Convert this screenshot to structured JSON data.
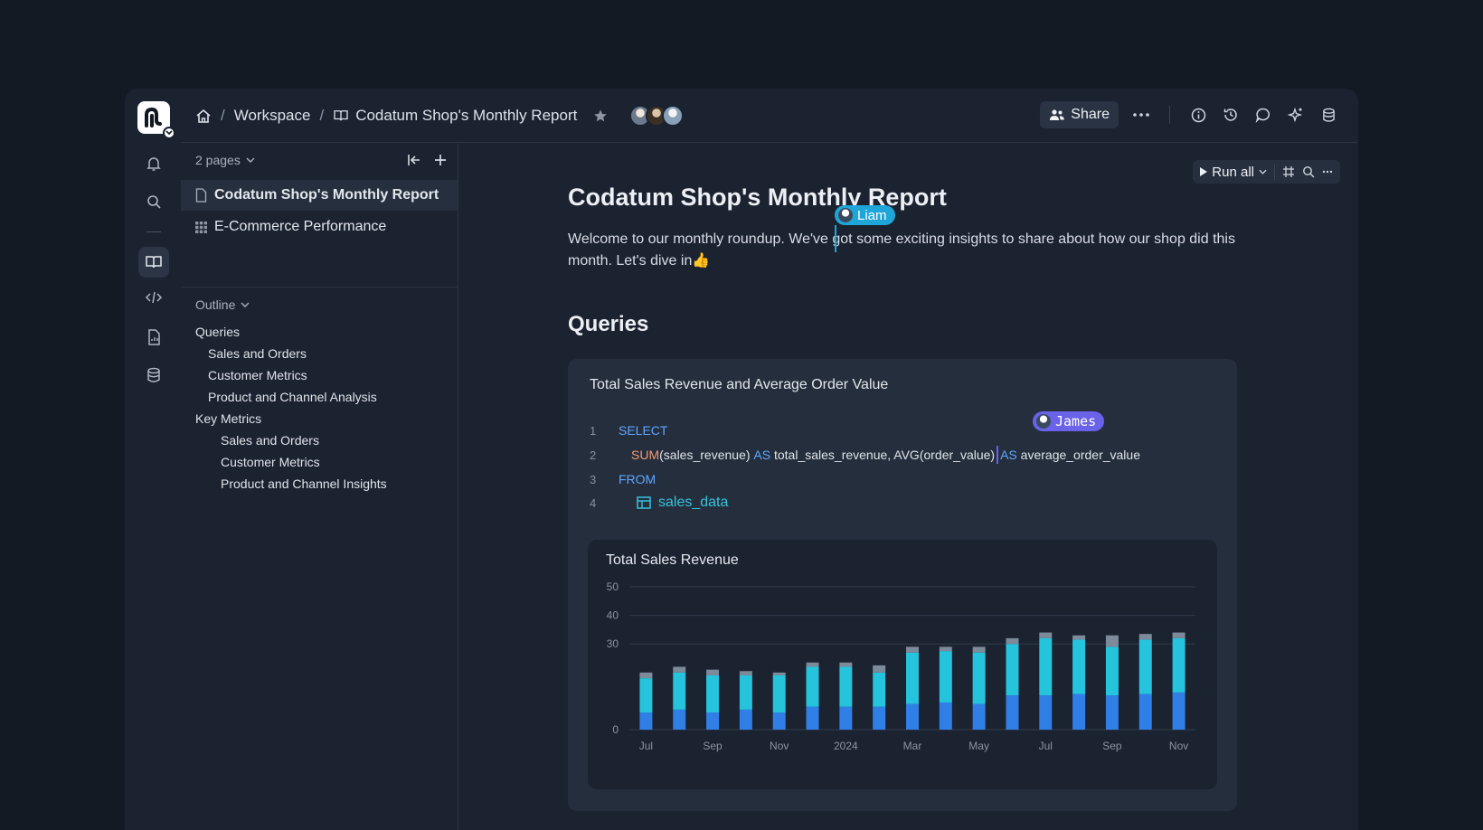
{
  "topbar": {
    "breadcrumb": [
      "Workspace",
      "Codatum Shop's Monthly Report"
    ],
    "share_label": "Share"
  },
  "sidebar": {
    "pages_label": "2 pages",
    "pages": [
      {
        "label": "Codatum Shop's Monthly Report",
        "active": true
      },
      {
        "label": "E-Commerce Performance",
        "active": false
      }
    ],
    "outline_label": "Outline",
    "outline": [
      {
        "label": "Queries",
        "level": 1
      },
      {
        "label": "Sales and Orders",
        "level": 2
      },
      {
        "label": "Customer Metrics",
        "level": 2
      },
      {
        "label": "Product and Channel Analysis",
        "level": 2
      },
      {
        "label": "Key Metrics",
        "level": 1
      },
      {
        "label": "Sales and Orders",
        "level": 3
      },
      {
        "label": "Customer Metrics",
        "level": 3
      },
      {
        "label": "Product and Channel Insights",
        "level": 3
      }
    ]
  },
  "toolbar": {
    "run_all_label": "Run all"
  },
  "doc": {
    "title": "Codatum Shop's Monthly Report",
    "intro": "Welcome to our monthly roundup. We've got some exciting insights to share about how our shop did this month. Let's dive in👍",
    "section_heading": "Queries"
  },
  "collaborators": {
    "liam": "Liam",
    "james": "James"
  },
  "query": {
    "title": "Total Sales Revenue and Average Order Value",
    "lines": {
      "l1_kw": "SELECT",
      "l2_fn": "SUM",
      "l2_a": "(sales_revenue) ",
      "l2_as1": "AS",
      "l2_b": " total_sales_revenue, AVG(order_value)",
      "l2_as2": "AS",
      "l2_c": " average_order_value",
      "l3_kw": "FROM",
      "l4_table": "sales_data"
    }
  },
  "chart_data": {
    "type": "bar",
    "stacked": true,
    "title": "Total Sales Revenue",
    "ylim": [
      0,
      50
    ],
    "yticks": [
      0,
      30,
      40,
      50
    ],
    "xtick_labels": [
      "Jul",
      "Sep",
      "Nov",
      "2024",
      "Mar",
      "May",
      "Jul",
      "Sep",
      "Nov"
    ],
    "colors": [
      "#2f7fe6",
      "#25c3dc",
      "#7d8a9a"
    ],
    "series": [
      {
        "values": [
          6,
          7,
          6,
          7,
          6,
          8,
          8,
          8,
          9,
          9.5,
          9,
          12,
          12,
          12.5,
          12,
          12.5,
          13
        ]
      },
      {
        "values": [
          12,
          13,
          13,
          12,
          13,
          14,
          14,
          12,
          18,
          18,
          18,
          18,
          20,
          19,
          17,
          19,
          19
        ]
      },
      {
        "values": [
          2,
          2,
          2,
          1.5,
          1,
          1.5,
          1.5,
          2.5,
          2,
          1.5,
          2,
          2,
          2,
          1.5,
          4,
          2,
          2
        ]
      }
    ]
  }
}
